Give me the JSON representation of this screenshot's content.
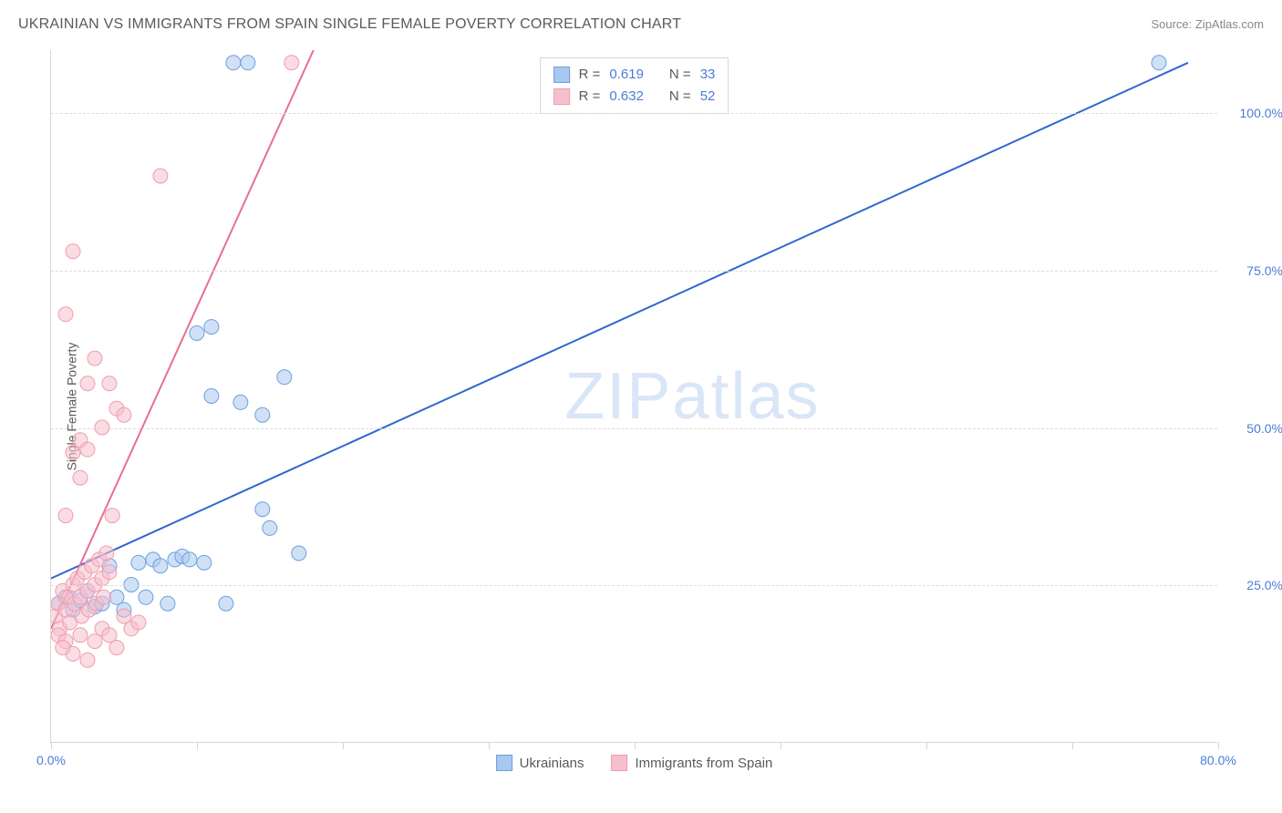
{
  "header": {
    "title": "UKRAINIAN VS IMMIGRANTS FROM SPAIN SINGLE FEMALE POVERTY CORRELATION CHART",
    "source_prefix": "Source: ",
    "source_link": "ZipAtlas.com"
  },
  "chart": {
    "type": "scatter",
    "ylabel": "Single Female Poverty",
    "xlim": [
      0,
      80
    ],
    "ylim": [
      0,
      110
    ],
    "x_ticks": [
      0,
      10,
      20,
      30,
      40,
      50,
      60,
      70,
      80
    ],
    "x_tick_labels": {
      "0": "0.0%",
      "80": "80.0%"
    },
    "y_gridlines": [
      25,
      50,
      75,
      100
    ],
    "y_tick_labels": {
      "25": "25.0%",
      "50": "50.0%",
      "75": "75.0%",
      "100": "100.0%"
    },
    "background_color": "#ffffff",
    "grid_color": "#dcdcdc",
    "axis_color": "#d6d6d6",
    "tick_label_color": "#4a7dd8",
    "label_color": "#5a5a5a",
    "label_fontsize": 14,
    "marker_radius": 8,
    "marker_opacity": 0.55,
    "line_width": 2,
    "watermark": "ZIPatlas",
    "series": [
      {
        "name": "Ukrainians",
        "fill_color": "#a9c8ef",
        "stroke_color": "#6b9fe0",
        "line_color": "#3067d0",
        "r": 0.619,
        "n": 33,
        "trend": {
          "x1": 0,
          "y1": 26,
          "x2": 78,
          "y2": 108
        },
        "points": [
          [
            0.5,
            22
          ],
          [
            1,
            23
          ],
          [
            1.5,
            21
          ],
          [
            2,
            22.5
          ],
          [
            2.5,
            24
          ],
          [
            3,
            21.5
          ],
          [
            3.5,
            22
          ],
          [
            4,
            28
          ],
          [
            4.5,
            23
          ],
          [
            5,
            21
          ],
          [
            5.5,
            25
          ],
          [
            6,
            28.5
          ],
          [
            6.5,
            23
          ],
          [
            7,
            29
          ],
          [
            7.5,
            28
          ],
          [
            8,
            22
          ],
          [
            8.5,
            29
          ],
          [
            9,
            29.5
          ],
          [
            9.5,
            29
          ],
          [
            10,
            65
          ],
          [
            11,
            66
          ],
          [
            11,
            55
          ],
          [
            12,
            22
          ],
          [
            13,
            54
          ],
          [
            14.5,
            37
          ],
          [
            14.5,
            52
          ],
          [
            15,
            34
          ],
          [
            16,
            58
          ],
          [
            17,
            30
          ],
          [
            12.5,
            108
          ],
          [
            13.5,
            108
          ],
          [
            76,
            108
          ],
          [
            10.5,
            28.5
          ]
        ]
      },
      {
        "name": "Immigrants from Spain",
        "fill_color": "#f5c0cc",
        "stroke_color": "#ef9cb0",
        "line_color": "#e67090",
        "r": 0.632,
        "n": 52,
        "trend": {
          "x1": 0,
          "y1": 18,
          "x2": 18,
          "y2": 110
        },
        "points": [
          [
            0.3,
            20
          ],
          [
            0.5,
            22
          ],
          [
            0.6,
            18
          ],
          [
            0.8,
            24
          ],
          [
            1,
            21
          ],
          [
            1.2,
            23
          ],
          [
            1.3,
            19
          ],
          [
            1.5,
            25
          ],
          [
            1.6,
            22
          ],
          [
            1.8,
            26
          ],
          [
            2,
            23
          ],
          [
            2.1,
            20
          ],
          [
            2.3,
            27
          ],
          [
            2.5,
            24
          ],
          [
            2.6,
            21
          ],
          [
            2.8,
            28
          ],
          [
            3,
            25
          ],
          [
            3.1,
            22
          ],
          [
            3.3,
            29
          ],
          [
            3.5,
            26
          ],
          [
            3.6,
            23
          ],
          [
            3.8,
            30
          ],
          [
            4,
            27
          ],
          [
            4.2,
            36
          ],
          [
            1,
            36
          ],
          [
            2,
            42
          ],
          [
            2,
            48
          ],
          [
            2.5,
            46.5
          ],
          [
            1.5,
            46
          ],
          [
            2.5,
            57
          ],
          [
            3.5,
            50
          ],
          [
            3,
            61
          ],
          [
            4.5,
            53
          ],
          [
            5,
            52
          ],
          [
            1,
            68
          ],
          [
            1.5,
            78
          ],
          [
            4,
            57
          ],
          [
            0.5,
            17
          ],
          [
            1,
            16
          ],
          [
            1.5,
            14
          ],
          [
            2,
            17
          ],
          [
            2.5,
            13
          ],
          [
            3,
            16
          ],
          [
            3.5,
            18
          ],
          [
            4,
            17
          ],
          [
            4.5,
            15
          ],
          [
            5,
            20
          ],
          [
            5.5,
            18
          ],
          [
            6,
            19
          ],
          [
            7.5,
            90
          ],
          [
            0.8,
            15
          ],
          [
            16.5,
            108
          ]
        ]
      }
    ]
  },
  "stats_legend": {
    "rows": [
      {
        "series_idx": 0,
        "r_prefix": "R =",
        "n_prefix": "N ="
      },
      {
        "series_idx": 1,
        "r_prefix": "R =",
        "n_prefix": "N ="
      }
    ]
  },
  "bottom_legend": {
    "items": [
      {
        "series_idx": 0
      },
      {
        "series_idx": 1
      }
    ]
  }
}
